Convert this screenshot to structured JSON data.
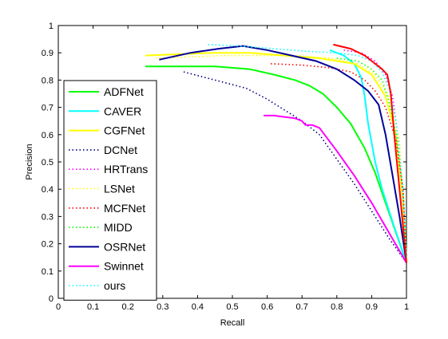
{
  "chart_data": {
    "type": "line",
    "title": "",
    "xlabel": "Recall",
    "ylabel": "Precision",
    "xlim": [
      0,
      1
    ],
    "ylim": [
      0,
      1
    ],
    "xticks": [
      "0",
      "0.1",
      "0.2",
      "0.3",
      "0.4",
      "0.5",
      "0.6",
      "0.7",
      "0.8",
      "0.9",
      "1"
    ],
    "yticks": [
      "0",
      "0.1",
      "0.2",
      "0.3",
      "0.4",
      "0.5",
      "0.6",
      "0.7",
      "0.8",
      "0.9",
      "1"
    ],
    "grid": false,
    "legend_position": "left",
    "series": [
      {
        "name": "ADFNet",
        "color": "#00ff00",
        "style": "solid",
        "points": [
          [
            0.25,
            0.85
          ],
          [
            0.35,
            0.85
          ],
          [
            0.45,
            0.85
          ],
          [
            0.55,
            0.84
          ],
          [
            0.62,
            0.82
          ],
          [
            0.68,
            0.8
          ],
          [
            0.72,
            0.78
          ],
          [
            0.76,
            0.75
          ],
          [
            0.8,
            0.7
          ],
          [
            0.84,
            0.64
          ],
          [
            0.88,
            0.55
          ],
          [
            0.91,
            0.46
          ],
          [
            0.94,
            0.35
          ],
          [
            0.97,
            0.24
          ],
          [
            1.0,
            0.13
          ]
        ]
      },
      {
        "name": "CAVER",
        "color": "#00ffff",
        "style": "solid",
        "points": [
          [
            0.78,
            0.91
          ],
          [
            0.82,
            0.89
          ],
          [
            0.85,
            0.86
          ],
          [
            0.87,
            0.81
          ],
          [
            0.88,
            0.74
          ],
          [
            0.89,
            0.64
          ],
          [
            0.91,
            0.5
          ],
          [
            0.93,
            0.4
          ],
          [
            0.96,
            0.28
          ],
          [
            1.0,
            0.13
          ]
        ]
      },
      {
        "name": "CGFNet",
        "color": "#ffff00",
        "style": "solid",
        "points": [
          [
            0.25,
            0.89
          ],
          [
            0.35,
            0.895
          ],
          [
            0.45,
            0.9
          ],
          [
            0.55,
            0.9
          ],
          [
            0.65,
            0.89
          ],
          [
            0.75,
            0.88
          ],
          [
            0.85,
            0.86
          ],
          [
            0.9,
            0.82
          ],
          [
            0.94,
            0.74
          ],
          [
            0.97,
            0.6
          ],
          [
            0.99,
            0.35
          ],
          [
            1.0,
            0.13
          ]
        ]
      },
      {
        "name": "DCNet",
        "color": "#000080",
        "style": "dotted",
        "points": [
          [
            0.36,
            0.83
          ],
          [
            0.42,
            0.81
          ],
          [
            0.48,
            0.79
          ],
          [
            0.54,
            0.77
          ],
          [
            0.6,
            0.73
          ],
          [
            0.65,
            0.69
          ],
          [
            0.7,
            0.65
          ],
          [
            0.75,
            0.6
          ],
          [
            0.8,
            0.51
          ],
          [
            0.85,
            0.42
          ],
          [
            0.9,
            0.32
          ],
          [
            0.95,
            0.22
          ],
          [
            1.0,
            0.13
          ]
        ]
      },
      {
        "name": "HRTrans",
        "color": "#ff00ff",
        "style": "dotted",
        "points": [
          [
            0.82,
            0.91
          ],
          [
            0.87,
            0.9
          ],
          [
            0.91,
            0.87
          ],
          [
            0.94,
            0.82
          ],
          [
            0.96,
            0.74
          ],
          [
            0.98,
            0.55
          ],
          [
            1.0,
            0.15
          ]
        ]
      },
      {
        "name": "LSNet",
        "color": "#ffff00",
        "style": "dotted",
        "points": [
          [
            0.28,
            0.88
          ],
          [
            0.38,
            0.885
          ],
          [
            0.48,
            0.89
          ],
          [
            0.58,
            0.89
          ],
          [
            0.68,
            0.89
          ],
          [
            0.78,
            0.88
          ],
          [
            0.86,
            0.86
          ],
          [
            0.91,
            0.82
          ],
          [
            0.95,
            0.74
          ],
          [
            0.98,
            0.58
          ],
          [
            1.0,
            0.15
          ]
        ]
      },
      {
        "name": "MCFNet",
        "color": "#ff0000",
        "style": "dotted",
        "points": [
          [
            0.61,
            0.86
          ],
          [
            0.7,
            0.855
          ],
          [
            0.78,
            0.845
          ],
          [
            0.84,
            0.83
          ],
          [
            0.88,
            0.8
          ],
          [
            0.91,
            0.76
          ],
          [
            0.94,
            0.7
          ],
          [
            0.97,
            0.58
          ],
          [
            0.99,
            0.4
          ],
          [
            1.0,
            0.15
          ]
        ]
      },
      {
        "name": "MIDD",
        "color": "#00ff00",
        "style": "dotted",
        "points": [
          [
            0.8,
            0.88
          ],
          [
            0.86,
            0.87
          ],
          [
            0.9,
            0.84
          ],
          [
            0.93,
            0.8
          ],
          [
            0.95,
            0.72
          ],
          [
            0.97,
            0.6
          ],
          [
            0.99,
            0.4
          ],
          [
            1.0,
            0.15
          ]
        ]
      },
      {
        "name": "OSRNet",
        "color": "#000099",
        "style": "solid",
        "points": [
          [
            0.29,
            0.875
          ],
          [
            0.38,
            0.9
          ],
          [
            0.46,
            0.915
          ],
          [
            0.53,
            0.925
          ],
          [
            0.6,
            0.91
          ],
          [
            0.67,
            0.89
          ],
          [
            0.74,
            0.87
          ],
          [
            0.8,
            0.84
          ],
          [
            0.85,
            0.8
          ],
          [
            0.89,
            0.76
          ],
          [
            0.92,
            0.71
          ],
          [
            0.94,
            0.6
          ],
          [
            0.96,
            0.45
          ],
          [
            0.98,
            0.3
          ],
          [
            1.0,
            0.13
          ]
        ]
      },
      {
        "name": "Swinnet",
        "color": "#ff00ff",
        "style": "solid",
        "points": [
          [
            0.59,
            0.67
          ],
          [
            0.62,
            0.67
          ],
          [
            0.65,
            0.665
          ],
          [
            0.68,
            0.66
          ],
          [
            0.7,
            0.65
          ],
          [
            0.71,
            0.635
          ],
          [
            0.73,
            0.635
          ],
          [
            0.75,
            0.625
          ],
          [
            0.8,
            0.54
          ],
          [
            0.85,
            0.45
          ],
          [
            0.9,
            0.35
          ],
          [
            0.95,
            0.24
          ],
          [
            1.0,
            0.13
          ]
        ]
      },
      {
        "name": "ours",
        "color": "#00ffff",
        "style": "dotted",
        "points": [
          [
            0.43,
            0.93
          ],
          [
            0.52,
            0.925
          ],
          [
            0.62,
            0.915
          ],
          [
            0.72,
            0.905
          ],
          [
            0.8,
            0.9
          ],
          [
            0.86,
            0.89
          ],
          [
            0.9,
            0.87
          ],
          [
            0.93,
            0.83
          ],
          [
            0.95,
            0.77
          ],
          [
            0.97,
            0.65
          ],
          [
            0.99,
            0.4
          ],
          [
            1.0,
            0.15
          ]
        ]
      },
      {
        "name": "",
        "color": "#ff0000",
        "style": "solid",
        "legend": false,
        "points": [
          [
            0.79,
            0.93
          ],
          [
            0.84,
            0.915
          ],
          [
            0.88,
            0.89
          ],
          [
            0.91,
            0.86
          ],
          [
            0.93,
            0.84
          ],
          [
            0.945,
            0.82
          ],
          [
            0.955,
            0.75
          ],
          [
            0.965,
            0.6
          ],
          [
            0.98,
            0.4
          ],
          [
            1.0,
            0.13
          ]
        ]
      }
    ]
  }
}
